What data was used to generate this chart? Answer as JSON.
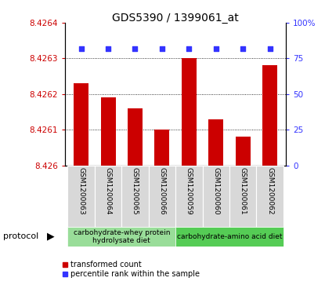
{
  "title": "GDS5390 / 1399061_at",
  "samples": [
    "GSM1200063",
    "GSM1200064",
    "GSM1200065",
    "GSM1200066",
    "GSM1200059",
    "GSM1200060",
    "GSM1200061",
    "GSM1200062"
  ],
  "bar_values": [
    8.42623,
    8.42619,
    8.42616,
    8.4261,
    8.4263,
    8.42613,
    8.42608,
    8.42628
  ],
  "percentile_values": [
    82,
    82,
    82,
    82,
    82,
    82,
    82,
    82
  ],
  "ylim_left": [
    8.426,
    8.4264
  ],
  "ylim_right": [
    0,
    100
  ],
  "yticks_left": [
    8.426,
    8.4261,
    8.4262,
    8.4263,
    8.4264
  ],
  "yticks_right": [
    0,
    25,
    50,
    75,
    100
  ],
  "bar_color": "#cc0000",
  "dot_color": "#3333ff",
  "grid_color": "#000000",
  "bg_color": "#d8d8d8",
  "group1_label": "carbohydrate-whey protein\nhydrolysate diet",
  "group2_label": "carbohydrate-amino acid diet",
  "group1_color": "#99dd99",
  "group2_color": "#55cc55",
  "protocol_label": "protocol",
  "legend_bar_label": "transformed count",
  "legend_dot_label": "percentile rank within the sample",
  "title_fontsize": 10,
  "tick_fontsize": 7.5,
  "label_fontsize": 6.5,
  "proto_fontsize": 6.5,
  "legend_fontsize": 7
}
